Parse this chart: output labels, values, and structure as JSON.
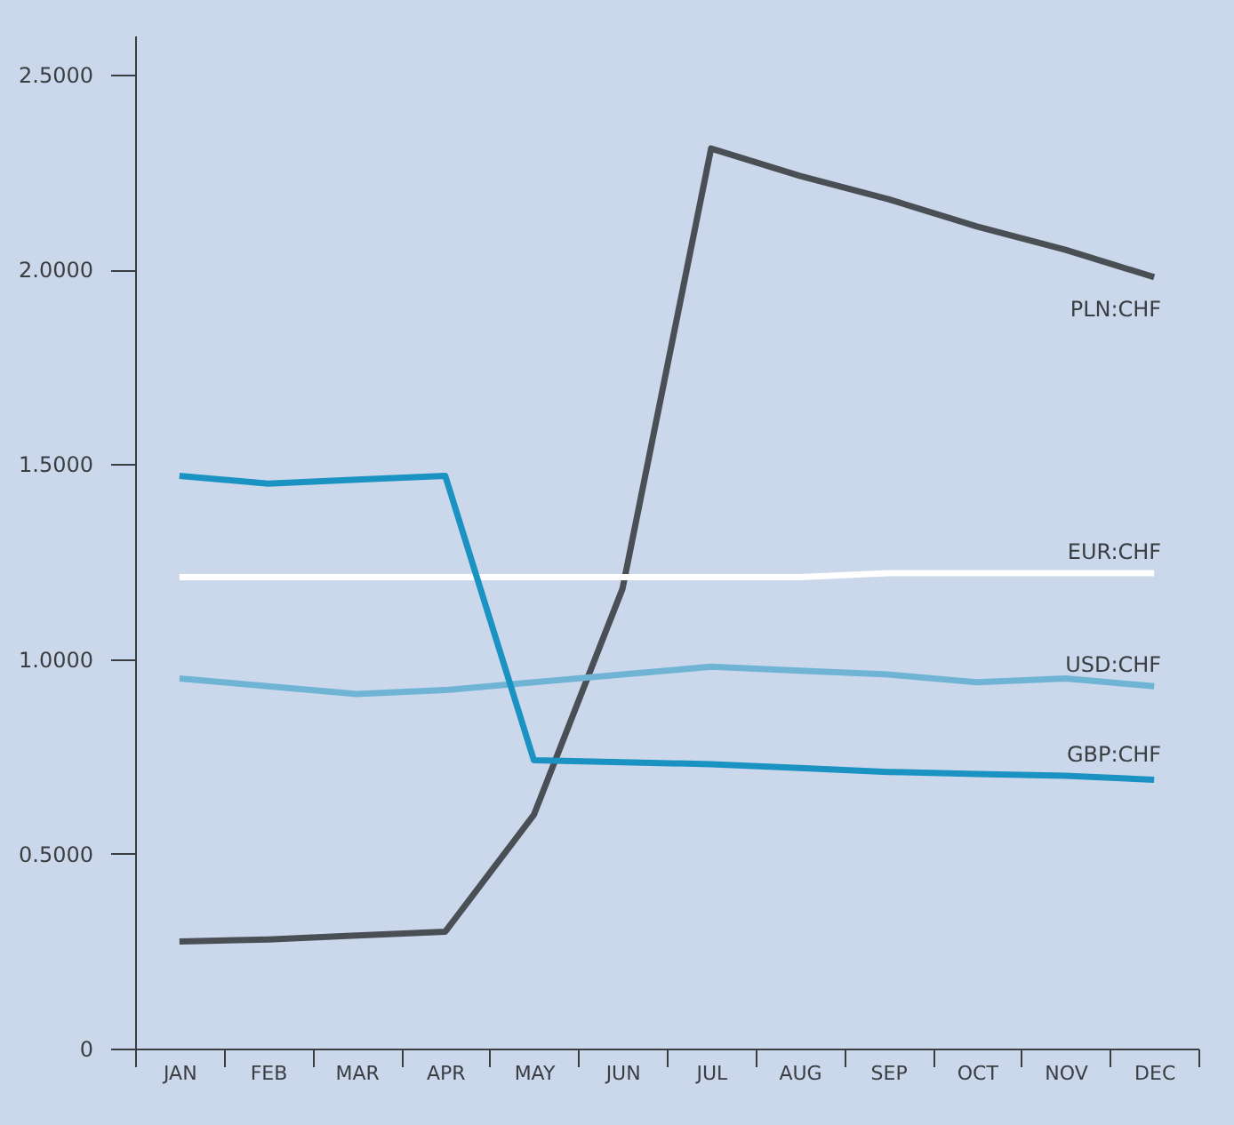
{
  "chart_data": {
    "type": "line",
    "categories": [
      "JAN",
      "FEB",
      "MAR",
      "APR",
      "MAY",
      "JUN",
      "JUL",
      "AUG",
      "SEP",
      "OCT",
      "NOV",
      "DEC"
    ],
    "series": [
      {
        "name": "PLN:CHF",
        "color": "#4a4f56",
        "values": [
          0.275,
          0.28,
          0.29,
          0.3,
          0.6,
          1.18,
          2.31,
          2.24,
          2.18,
          2.11,
          2.05,
          1.98
        ]
      },
      {
        "name": "EUR:CHF",
        "color": "#ffffff",
        "values": [
          1.21,
          1.21,
          1.21,
          1.21,
          1.21,
          1.21,
          1.21,
          1.21,
          1.22,
          1.22,
          1.22,
          1.22
        ]
      },
      {
        "name": "USD:CHF",
        "color": "#6fb4d4",
        "values": [
          0.95,
          0.93,
          0.91,
          0.92,
          0.94,
          0.96,
          0.98,
          0.97,
          0.96,
          0.94,
          0.95,
          0.93
        ]
      },
      {
        "name": "GBP:CHF",
        "color": "#1a93c2",
        "values": [
          1.47,
          1.45,
          1.46,
          1.47,
          0.74,
          0.735,
          0.73,
          0.72,
          0.71,
          0.705,
          0.7,
          0.69
        ]
      }
    ],
    "ylim": [
      0,
      2.6
    ],
    "yticks": [
      {
        "value": 0,
        "label": "0"
      },
      {
        "value": 0.5,
        "label": "0.5000"
      },
      {
        "value": 1,
        "label": "1.0000"
      },
      {
        "value": 1.5,
        "label": "1.5000"
      },
      {
        "value": 2,
        "label": "2.0000"
      },
      {
        "value": 2.5,
        "label": "2.5000"
      }
    ],
    "grid": false,
    "legend": false,
    "marker": "none",
    "line_style": "solid"
  }
}
